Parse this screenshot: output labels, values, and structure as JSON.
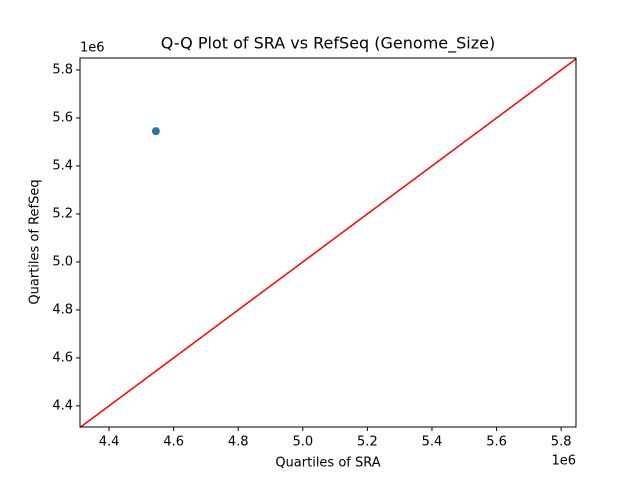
{
  "chart_data": {
    "type": "scatter",
    "title": "Q-Q Plot of SRA vs RefSeq (Genome_Size)",
    "x_label": "Quartiles of SRA",
    "y_label": "Quartiles of RefSeq",
    "x_offset_label": "1e6",
    "y_offset_label": "1e6",
    "x": [
      4545000
    ],
    "values": [
      5545000
    ],
    "color": "#1f77b4",
    "reference_line": {
      "color": "#ff0000",
      "x": [
        4310000,
        5848000
      ],
      "y": [
        4310000,
        5848000
      ]
    },
    "xlim": [
      4310000,
      5846000
    ],
    "ylim": [
      4312000,
      5850000
    ],
    "xticks": [
      {
        "value": 4400000,
        "label": "4.4"
      },
      {
        "value": 4600000,
        "label": "4.6"
      },
      {
        "value": 4800000,
        "label": "4.8"
      },
      {
        "value": 5000000,
        "label": "5.0"
      },
      {
        "value": 5200000,
        "label": "5.2"
      },
      {
        "value": 5400000,
        "label": "5.4"
      },
      {
        "value": 5600000,
        "label": "5.6"
      },
      {
        "value": 5800000,
        "label": "5.8"
      }
    ],
    "yticks": [
      {
        "value": 4400000,
        "label": "4.4"
      },
      {
        "value": 4600000,
        "label": "4.6"
      },
      {
        "value": 4800000,
        "label": "4.8"
      },
      {
        "value": 5000000,
        "label": "5.0"
      },
      {
        "value": 5200000,
        "label": "5.2"
      },
      {
        "value": 5400000,
        "label": "5.4"
      },
      {
        "value": 5600000,
        "label": "5.6"
      },
      {
        "value": 5800000,
        "label": "5.8"
      }
    ]
  }
}
